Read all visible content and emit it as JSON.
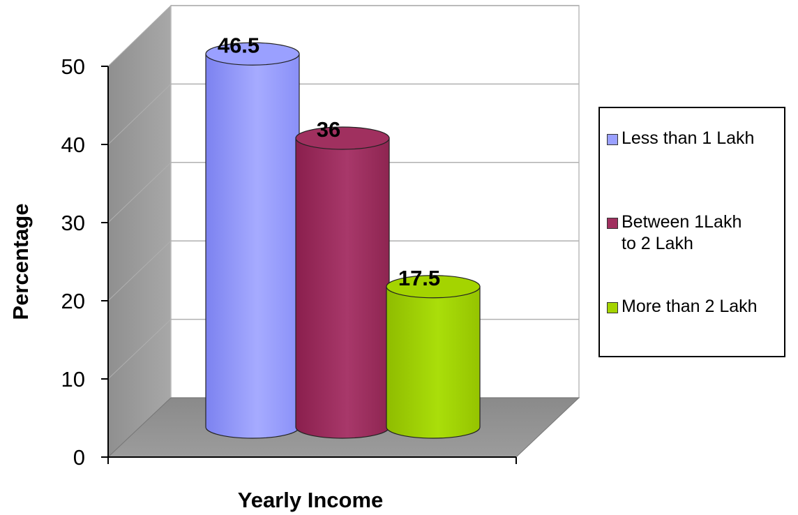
{
  "chart_data": {
    "type": "bar",
    "style": "3d-cylinder",
    "categories": [
      "Less than 1 Lakh",
      "Between 1Lakh\nto 2 Lakh",
      "More than 2 Lakh"
    ],
    "values": [
      46.5,
      36,
      17.5
    ],
    "data_labels": [
      "46.5",
      "36",
      "17.5"
    ],
    "colors": [
      "#9aa0ff",
      "#a0305f",
      "#a4d400"
    ],
    "xlabel": "Yearly Income",
    "ylabel": "Percentage",
    "ylim": [
      0,
      50
    ],
    "yticks": [
      "0",
      "10",
      "20",
      "30",
      "40",
      "50"
    ],
    "grid": true,
    "legend": "right"
  }
}
